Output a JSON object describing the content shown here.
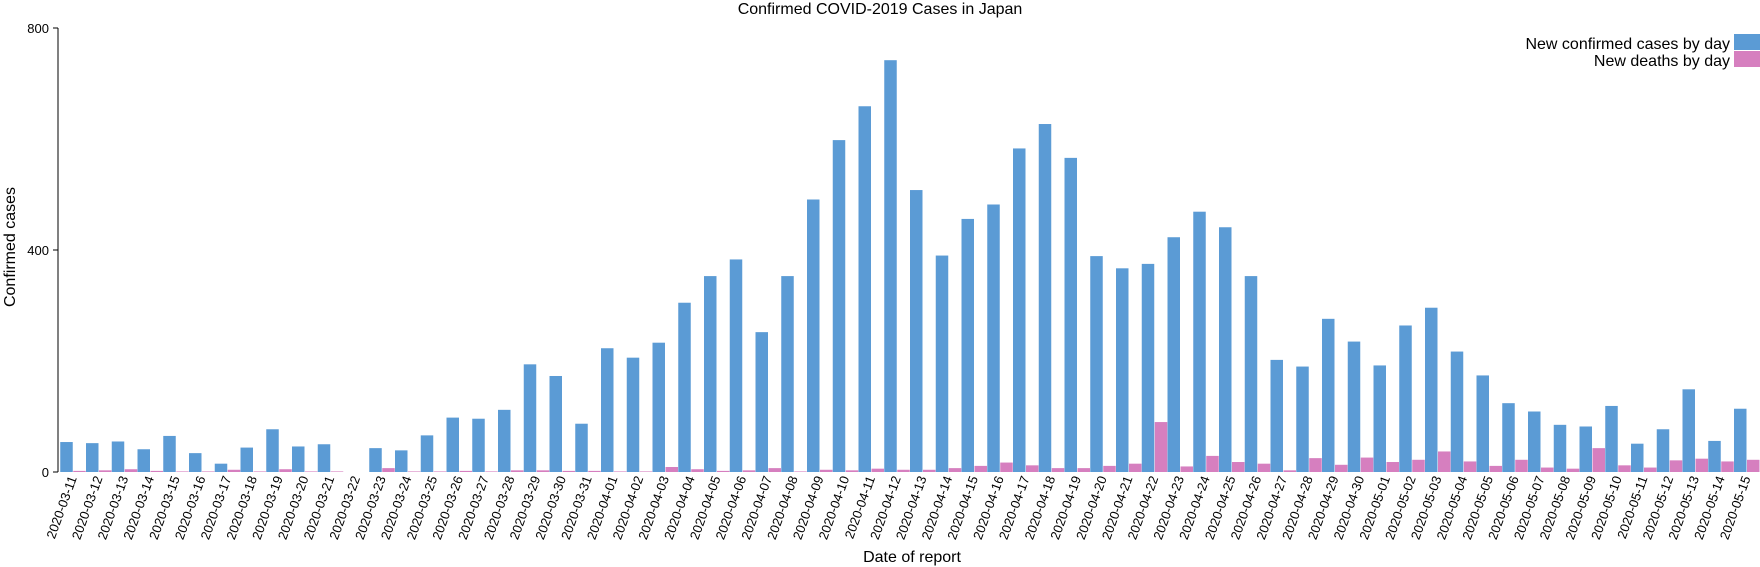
{
  "chart_data": {
    "type": "bar",
    "title": "Confirmed COVID-2019 Cases in Japan",
    "xlabel": "Date of report",
    "ylabel": "Confirmed cases",
    "ylim": [
      0,
      800
    ],
    "yticks": [
      0,
      400,
      800
    ],
    "grid": false,
    "legend_position": "top-right",
    "categories": [
      "2020-03-11",
      "2020-03-12",
      "2020-03-13",
      "2020-03-14",
      "2020-03-15",
      "2020-03-16",
      "2020-03-17",
      "2020-03-18",
      "2020-03-19",
      "2020-03-20",
      "2020-03-21",
      "2020-03-22",
      "2020-03-23",
      "2020-03-24",
      "2020-03-25",
      "2020-03-26",
      "2020-03-27",
      "2020-03-28",
      "2020-03-29",
      "2020-03-30",
      "2020-03-31",
      "2020-04-01",
      "2020-04-02",
      "2020-04-03",
      "2020-04-04",
      "2020-04-05",
      "2020-04-06",
      "2020-04-07",
      "2020-04-08",
      "2020-04-09",
      "2020-04-10",
      "2020-04-11",
      "2020-04-12",
      "2020-04-13",
      "2020-04-14",
      "2020-04-15",
      "2020-04-16",
      "2020-04-17",
      "2020-04-18",
      "2020-04-19",
      "2020-04-20",
      "2020-04-21",
      "2020-04-22",
      "2020-04-23",
      "2020-04-24",
      "2020-04-25",
      "2020-04-26",
      "2020-04-27",
      "2020-04-28",
      "2020-04-29",
      "2020-04-30",
      "2020-05-01",
      "2020-05-02",
      "2020-05-03",
      "2020-05-04",
      "2020-05-05",
      "2020-05-06",
      "2020-05-07",
      "2020-05-08",
      "2020-05-09",
      "2020-05-10",
      "2020-05-11",
      "2020-05-12",
      "2020-05-13",
      "2020-05-14",
      "2020-05-15"
    ],
    "series": [
      {
        "name": "New confirmed cases by day",
        "color": "#5b9bd5",
        "values": [
          54,
          52,
          55,
          41,
          65,
          34,
          15,
          44,
          77,
          46,
          50,
          0,
          43,
          39,
          66,
          98,
          96,
          112,
          194,
          173,
          87,
          223,
          206,
          233,
          305,
          353,
          383,
          252,
          353,
          491,
          598,
          659,
          742,
          508,
          390,
          456,
          482,
          583,
          627,
          566,
          389,
          367,
          375,
          423,
          469,
          441,
          353,
          202,
          190,
          276,
          235,
          192,
          264,
          296,
          217,
          174,
          124,
          109,
          85,
          82,
          119,
          51,
          77,
          149,
          56,
          114
        ]
      },
      {
        "name": "New deaths by day",
        "color": "#d67fbf",
        "values": [
          2,
          3,
          5,
          2,
          1,
          1,
          4,
          1,
          5,
          1,
          1,
          0,
          7,
          1,
          1,
          2,
          1,
          3,
          3,
          2,
          2,
          1,
          1,
          9,
          5,
          2,
          3,
          7,
          1,
          4,
          3,
          6,
          4,
          4,
          7,
          11,
          17,
          12,
          7,
          7,
          11,
          15,
          90,
          10,
          29,
          18,
          15,
          3,
          25,
          13,
          26,
          18,
          22,
          37,
          19,
          11,
          22,
          8,
          6,
          43,
          12,
          8,
          21,
          24,
          19,
          22
        ]
      }
    ]
  }
}
